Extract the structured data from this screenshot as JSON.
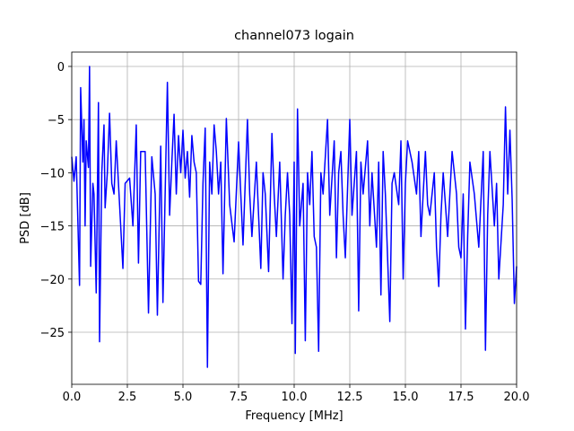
{
  "chart_data": {
    "type": "line",
    "title": "channel073 logain",
    "xlabel": "Frequency [MHz]",
    "ylabel": "PSD [dB]",
    "color": "#0000ff",
    "grid": true,
    "xlim": [
      0,
      20
    ],
    "ylim": [
      -29.9,
      1.35
    ],
    "xticks": [
      {
        "value": 0,
        "label": "0.0"
      },
      {
        "value": 2.5,
        "label": "2.5"
      },
      {
        "value": 5,
        "label": "5.0"
      },
      {
        "value": 7.5,
        "label": "7.5"
      },
      {
        "value": 10,
        "label": "10.0"
      },
      {
        "value": 12.5,
        "label": "12.5"
      },
      {
        "value": 15,
        "label": "15.0"
      },
      {
        "value": 17.5,
        "label": "17.5"
      },
      {
        "value": 20,
        "label": "20.0"
      }
    ],
    "yticks": [
      {
        "value": -25,
        "label": "−25"
      },
      {
        "value": -20,
        "label": "−20"
      },
      {
        "value": -15,
        "label": "−15"
      },
      {
        "value": -10,
        "label": "−10"
      },
      {
        "value": -5,
        "label": "−5"
      },
      0
    ],
    "x": [
      0,
      0.1,
      0.2,
      0.3,
      0.35,
      0.4,
      0.5,
      0.55,
      0.6,
      0.65,
      0.75,
      0.8,
      0.85,
      0.95,
      1.0,
      1.1,
      1.2,
      1.25,
      1.35,
      1.45,
      1.5,
      1.6,
      1.7,
      1.8,
      1.9,
      2.0,
      2.1,
      2.3,
      2.4,
      2.6,
      2.75,
      2.9,
      3.0,
      3.1,
      3.3,
      3.45,
      3.6,
      3.75,
      3.85,
      4.0,
      4.1,
      4.3,
      4.4,
      4.5,
      4.6,
      4.7,
      4.8,
      4.9,
      5.0,
      5.1,
      5.2,
      5.3,
      5.4,
      5.5,
      5.6,
      5.7,
      5.8,
      5.9,
      6.0,
      6.1,
      6.2,
      6.3,
      6.4,
      6.5,
      6.6,
      6.7,
      6.8,
      6.95,
      7.1,
      7.3,
      7.5,
      7.6,
      7.7,
      7.9,
      8.0,
      8.1,
      8.3,
      8.4,
      8.5,
      8.6,
      8.7,
      8.85,
      9.0,
      9.1,
      9.2,
      9.35,
      9.5,
      9.6,
      9.7,
      9.8,
      9.9,
      10.0,
      10.05,
      10.15,
      10.25,
      10.4,
      10.5,
      10.6,
      10.7,
      10.8,
      10.9,
      11.0,
      11.1,
      11.2,
      11.3,
      11.5,
      11.6,
      11.7,
      11.8,
      11.9,
      12.0,
      12.1,
      12.2,
      12.3,
      12.5,
      12.6,
      12.7,
      12.8,
      12.9,
      13.0,
      13.1,
      13.3,
      13.4,
      13.5,
      13.7,
      13.8,
      13.9,
      14.0,
      14.1,
      14.3,
      14.4,
      14.5,
      14.7,
      14.8,
      14.9,
      15.0,
      15.1,
      15.3,
      15.5,
      15.6,
      15.7,
      15.9,
      16.0,
      16.1,
      16.3,
      16.4,
      16.5,
      16.6,
      16.7,
      16.9,
      17.0,
      17.1,
      17.3,
      17.4,
      17.5,
      17.6,
      17.7,
      17.8,
      17.9,
      18.1,
      18.3,
      18.5,
      18.6,
      18.7,
      18.8,
      19.0,
      19.1,
      19.2,
      19.4,
      19.5,
      19.6,
      19.7,
      19.8,
      19.9,
      20.0
    ],
    "values": [
      -8.5,
      -10.8,
      -8.5,
      -16.6,
      -20.6,
      -2,
      -9,
      -5,
      -15,
      -7,
      -9.5,
      0,
      -18.8,
      -11,
      -12,
      -21.3,
      -3.4,
      -25.9,
      -10,
      -5.5,
      -13.3,
      -10,
      -4.4,
      -11,
      -12,
      -7,
      -11,
      -19,
      -11,
      -10.5,
      -15,
      -5.5,
      -18.5,
      -8,
      -8,
      -23.2,
      -8.5,
      -12,
      -23.4,
      -7.5,
      -22.2,
      -1.5,
      -14,
      -9,
      -4.5,
      -12,
      -6.5,
      -10,
      -6,
      -10.5,
      -8,
      -12.3,
      -6.5,
      -9,
      -10,
      -20.2,
      -20.5,
      -11,
      -5.8,
      -28.3,
      -9,
      -12,
      -5.5,
      -8,
      -12,
      -9,
      -19.5,
      -4.9,
      -13,
      -16.5,
      -7.1,
      -12,
      -16.8,
      -5,
      -12,
      -16,
      -9,
      -14,
      -19,
      -10,
      -12,
      -19.3,
      -6.3,
      -12,
      -16,
      -9,
      -20,
      -14,
      -10,
      -14,
      -24.2,
      -9,
      -27,
      -4,
      -15,
      -11,
      -25.8,
      -10,
      -13,
      -8,
      -16,
      -17,
      -26.8,
      -10,
      -12,
      -5,
      -14,
      -10.5,
      -7,
      -18,
      -10,
      -8,
      -14,
      -18,
      -5,
      -14,
      -11,
      -8,
      -23,
      -9,
      -12,
      -7,
      -15,
      -10,
      -17,
      -9,
      -21.5,
      -8,
      -12,
      -24,
      -11,
      -10,
      -13,
      -7,
      -20,
      -11,
      -7,
      -9,
      -12,
      -8,
      -16,
      -8,
      -13,
      -14,
      -10,
      -17,
      -20.7,
      -14,
      -10,
      -16,
      -12,
      -8,
      -12,
      -17,
      -18,
      -12,
      -24.7,
      -16,
      -9,
      -12,
      -17,
      -8,
      -26.7,
      -14,
      -8,
      -15,
      -11,
      -20,
      -13,
      -3.8,
      -12,
      -6,
      -12.5,
      -22.3,
      -18.8
    ]
  }
}
